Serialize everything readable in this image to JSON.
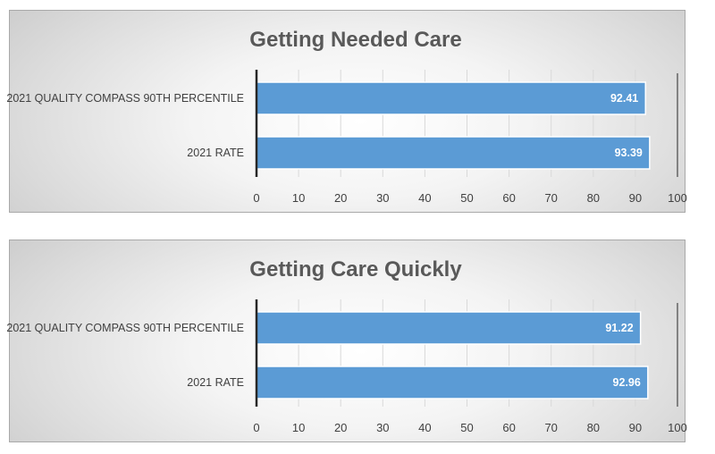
{
  "colors": {
    "bar_fill": "#5b9bd5",
    "bar_stroke": "#ffffff",
    "gridline": "#d9d9d9",
    "axis_line": "#262626",
    "title": "#595959",
    "text": "#404040",
    "data_label": "#ffffff"
  },
  "chart_data": [
    {
      "type": "bar",
      "orientation": "horizontal",
      "title": "Getting Needed Care",
      "categories": [
        "2021 QUALITY COMPASS 90TH PERCENTILE",
        "2021 RATE"
      ],
      "values": [
        92.41,
        93.39
      ],
      "data_labels": [
        "92.41",
        "93.39"
      ],
      "xlim": [
        0,
        100
      ],
      "x_ticks": [
        "0",
        "10",
        "20",
        "30",
        "40",
        "50",
        "60",
        "70",
        "80",
        "90",
        "100"
      ],
      "grid": true,
      "legend": "none"
    },
    {
      "type": "bar",
      "orientation": "horizontal",
      "title": "Getting Care Quickly",
      "categories": [
        "2021 QUALITY COMPASS 90TH PERCENTILE",
        "2021 RATE"
      ],
      "values": [
        91.22,
        92.96
      ],
      "data_labels": [
        "91.22",
        "92.96"
      ],
      "xlim": [
        0,
        100
      ],
      "x_ticks": [
        "0",
        "10",
        "20",
        "30",
        "40",
        "50",
        "60",
        "70",
        "80",
        "90",
        "100"
      ],
      "grid": true,
      "legend": "none"
    }
  ]
}
